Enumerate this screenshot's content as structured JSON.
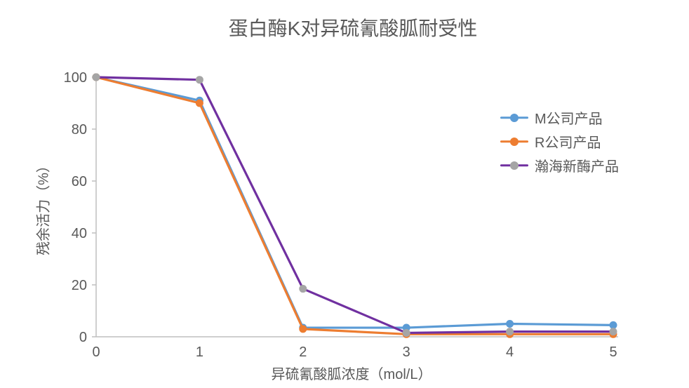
{
  "chart_data": {
    "type": "line",
    "title": "蛋白酶K对异硫氰酸胍耐受性",
    "xlabel": "异硫氰酸胍浓度（mol/L）",
    "ylabel": "残余活力（%）",
    "categories": [
      "0",
      "1",
      "2",
      "3",
      "4",
      "5"
    ],
    "y_ticks": [
      "0",
      "20",
      "40",
      "60",
      "80",
      "100"
    ],
    "ylim": [
      0,
      100
    ],
    "grid": false,
    "legend_position": "right",
    "series": [
      {
        "name": "M公司产品",
        "color": "#5B9BD5",
        "marker_color": "#5B9BD5",
        "values": [
          100,
          91,
          3.5,
          3.5,
          5,
          4.5
        ]
      },
      {
        "name": "R公司产品",
        "color": "#ED7D31",
        "marker_color": "#ED7D31",
        "values": [
          100,
          90,
          3,
          1,
          1,
          1
        ]
      },
      {
        "name": "瀚海新酶产品",
        "color": "#7030A0",
        "marker_color": "#A5A5A5",
        "values": [
          100,
          99,
          18.5,
          1.5,
          2,
          2
        ]
      }
    ],
    "axis_color": "#BFBFBF",
    "text_color": "#595959",
    "background_color": "#FFFFFF"
  }
}
